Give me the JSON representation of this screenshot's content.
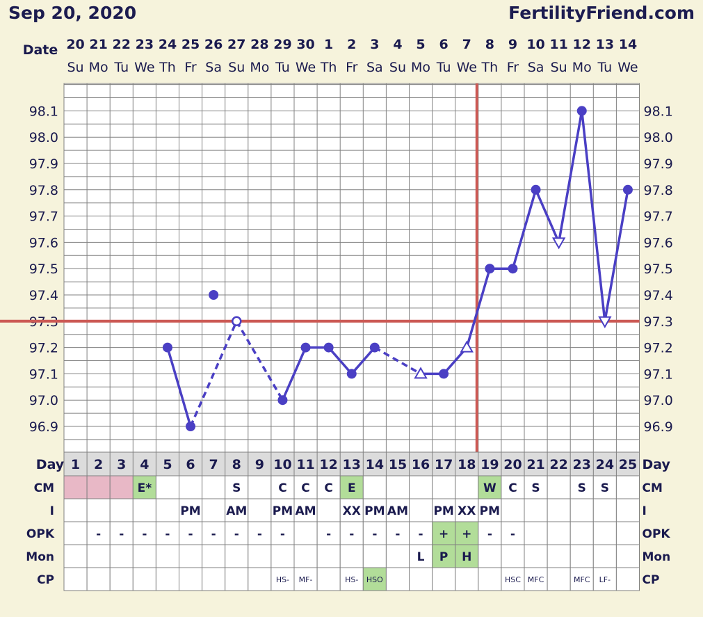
{
  "header": {
    "date": "Sep 20, 2020",
    "site": "FertilityFriend.com"
  },
  "colors": {
    "background": "#f6f3dc",
    "grid": "#808080",
    "line": "#4a3fc4",
    "coverline": "#cc5a55",
    "fertile_cell": "#b2dd99",
    "period_cell": "#e8b8c6"
  },
  "labels": {
    "date": "Date",
    "day": "Day"
  },
  "dates": [
    "20",
    "21",
    "22",
    "23",
    "24",
    "25",
    "26",
    "27",
    "28",
    "29",
    "30",
    "1",
    "2",
    "3",
    "4",
    "5",
    "6",
    "7",
    "8",
    "9",
    "10",
    "11",
    "12",
    "13",
    "14"
  ],
  "weekdays": [
    "Su",
    "Mo",
    "Tu",
    "We",
    "Th",
    "Fr",
    "Sa",
    "Su",
    "Mo",
    "Tu",
    "We",
    "Th",
    "Fr",
    "Sa",
    "Su",
    "Mo",
    "Tu",
    "We",
    "Th",
    "Fr",
    "Sa",
    "Su",
    "Mo",
    "Tu",
    "We"
  ],
  "days": [
    "1",
    "2",
    "3",
    "4",
    "5",
    "6",
    "7",
    "8",
    "9",
    "10",
    "11",
    "12",
    "13",
    "14",
    "15",
    "16",
    "17",
    "18",
    "19",
    "20",
    "21",
    "22",
    "23",
    "24",
    "25"
  ],
  "chart_data": {
    "type": "line",
    "title": "",
    "xlabel": "Day",
    "ylabel": "",
    "ylim": [
      96.8,
      98.2
    ],
    "yticks": [
      "98.1",
      "98.0",
      "97.9",
      "97.8",
      "97.7",
      "97.6",
      "97.5",
      "97.4",
      "97.3",
      "97.2",
      "97.1",
      "97.0",
      "96.9"
    ],
    "coverline": 97.3,
    "ovulation_day": 18,
    "grid": true,
    "series": [
      {
        "temps": [
          {
            "day": 5,
            "temp": 97.2,
            "marker": "dot"
          },
          {
            "day": 6,
            "temp": 96.9,
            "marker": "dot"
          },
          {
            "day": 7,
            "temp": 97.4,
            "marker": "dot"
          },
          {
            "day": 8,
            "temp": 97.3,
            "marker": "open"
          },
          {
            "day": 10,
            "temp": 97.0,
            "marker": "dot"
          },
          {
            "day": 11,
            "temp": 97.2,
            "marker": "dot"
          },
          {
            "day": 12,
            "temp": 97.2,
            "marker": "dot"
          },
          {
            "day": 13,
            "temp": 97.1,
            "marker": "dot"
          },
          {
            "day": 14,
            "temp": 97.2,
            "marker": "dot"
          },
          {
            "day": 16,
            "temp": 97.1,
            "marker": "tri-up"
          },
          {
            "day": 17,
            "temp": 97.1,
            "marker": "dot"
          },
          {
            "day": 18,
            "temp": 97.2,
            "marker": "tri-up"
          },
          {
            "day": 19,
            "temp": 97.5,
            "marker": "dot"
          },
          {
            "day": 20,
            "temp": 97.5,
            "marker": "dot"
          },
          {
            "day": 21,
            "temp": 97.8,
            "marker": "dot"
          },
          {
            "day": 22,
            "temp": 97.6,
            "marker": "tri-down"
          },
          {
            "day": 23,
            "temp": 98.1,
            "marker": "dot"
          },
          {
            "day": 24,
            "temp": 97.3,
            "marker": "tri-down"
          },
          {
            "day": 25,
            "temp": 97.8,
            "marker": "dot"
          }
        ],
        "segments": [
          {
            "from": 5,
            "to": 6,
            "style": "solid"
          },
          {
            "from": 6,
            "to": 8,
            "style": "dashed"
          },
          {
            "from": 8,
            "to": 10,
            "style": "dashed"
          },
          {
            "from": 10,
            "to": 14,
            "style": "solid"
          },
          {
            "from": 14,
            "to": 16,
            "style": "dashed"
          },
          {
            "from": 16,
            "to": 25,
            "style": "solid"
          }
        ]
      }
    ]
  },
  "rows": [
    {
      "label": "CM",
      "cells": [
        {
          "day": 1,
          "text": "",
          "fill": "period"
        },
        {
          "day": 2,
          "text": "",
          "fill": "period"
        },
        {
          "day": 3,
          "text": "",
          "fill": "period"
        },
        {
          "day": 4,
          "text": "E*",
          "fill": "fertile"
        },
        {
          "day": 8,
          "text": "S"
        },
        {
          "day": 10,
          "text": "C"
        },
        {
          "day": 11,
          "text": "C"
        },
        {
          "day": 12,
          "text": "C"
        },
        {
          "day": 13,
          "text": "E",
          "fill": "fertile"
        },
        {
          "day": 19,
          "text": "W",
          "fill": "fertile"
        },
        {
          "day": 20,
          "text": "C"
        },
        {
          "day": 21,
          "text": "S"
        },
        {
          "day": 23,
          "text": "S"
        },
        {
          "day": 24,
          "text": "S"
        }
      ]
    },
    {
      "label": "I",
      "cells": [
        {
          "day": 6,
          "text": "PM"
        },
        {
          "day": 8,
          "text": "AM"
        },
        {
          "day": 10,
          "text": "PM"
        },
        {
          "day": 11,
          "text": "AM"
        },
        {
          "day": 13,
          "text": "XX"
        },
        {
          "day": 14,
          "text": "PM"
        },
        {
          "day": 15,
          "text": "AM"
        },
        {
          "day": 17,
          "text": "PM"
        },
        {
          "day": 18,
          "text": "XX"
        },
        {
          "day": 19,
          "text": "PM"
        }
      ]
    },
    {
      "label": "OPK",
      "cells": [
        {
          "day": 2,
          "text": "-"
        },
        {
          "day": 3,
          "text": "-"
        },
        {
          "day": 4,
          "text": "-"
        },
        {
          "day": 5,
          "text": "-"
        },
        {
          "day": 6,
          "text": "-"
        },
        {
          "day": 7,
          "text": "-"
        },
        {
          "day": 8,
          "text": "-"
        },
        {
          "day": 9,
          "text": "-"
        },
        {
          "day": 10,
          "text": "-"
        },
        {
          "day": 12,
          "text": "-"
        },
        {
          "day": 13,
          "text": "-"
        },
        {
          "day": 14,
          "text": "-"
        },
        {
          "day": 15,
          "text": "-"
        },
        {
          "day": 16,
          "text": "-"
        },
        {
          "day": 17,
          "text": "+",
          "fill": "fertile"
        },
        {
          "day": 18,
          "text": "+",
          "fill": "fertile"
        },
        {
          "day": 19,
          "text": "-"
        },
        {
          "day": 20,
          "text": "-"
        }
      ]
    },
    {
      "label": "Mon",
      "cells": [
        {
          "day": 16,
          "text": "L"
        },
        {
          "day": 17,
          "text": "P",
          "fill": "fertile"
        },
        {
          "day": 18,
          "text": "H",
          "fill": "fertile"
        }
      ]
    },
    {
      "label": "CP",
      "small": true,
      "cells": [
        {
          "day": 10,
          "text": "HS-"
        },
        {
          "day": 11,
          "text": "MF-"
        },
        {
          "day": 13,
          "text": "HS-"
        },
        {
          "day": 14,
          "text": "HSO",
          "fill": "fertile"
        },
        {
          "day": 20,
          "text": "HSC"
        },
        {
          "day": 21,
          "text": "MFC"
        },
        {
          "day": 23,
          "text": "MFC"
        },
        {
          "day": 24,
          "text": "LF-"
        }
      ]
    }
  ]
}
